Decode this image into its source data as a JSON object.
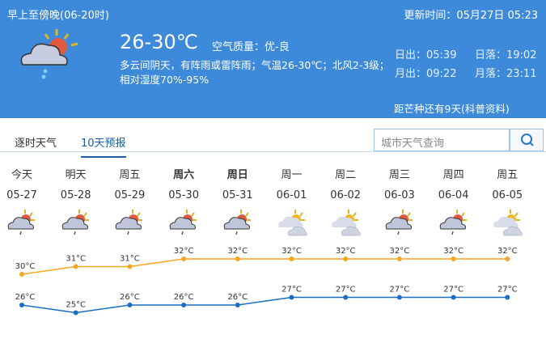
{
  "header": {
    "period": "早上至傍晚(06-20时)",
    "update_time": "更新时间：05月27日 05:23",
    "temperature": "26-30℃",
    "air_quality": "空气质量：优-良",
    "description": "多云间阴天，有阵雨或雷阵雨；气温26-30℃；北风2-3级；相对湿度70%-95%",
    "sunrise": "日出：05:39",
    "sunset": "日落：19:02",
    "moonrise": "月出：09:22",
    "moonset": "月落：23:11",
    "solar_term": "距芒种还有9天(科普资料)",
    "icon": "partly-cloudy-shower-icon"
  },
  "tabs": [
    {
      "label": "逐时天气",
      "active": false
    },
    {
      "label": "10天预报",
      "active": true
    }
  ],
  "search": {
    "placeholder": "城市天气查询",
    "icon": "search-icon"
  },
  "colors": {
    "header_bg": "#3e8ada",
    "high_line": "#f5a623",
    "low_line": "#1a6ec5"
  },
  "forecast": [
    {
      "day": "今天",
      "date": "05-27",
      "icon": "cloudy-shower",
      "bold": false
    },
    {
      "day": "明天",
      "date": "05-28",
      "icon": "cloudy-shower",
      "bold": false
    },
    {
      "day": "周五",
      "date": "05-29",
      "icon": "cloudy-shower",
      "bold": false
    },
    {
      "day": "周六",
      "date": "05-30",
      "icon": "cloudy-shower",
      "bold": true
    },
    {
      "day": "周日",
      "date": "05-31",
      "icon": "cloudy-shower",
      "bold": true
    },
    {
      "day": "周一",
      "date": "06-01",
      "icon": "partly-cloudy",
      "bold": false
    },
    {
      "day": "周二",
      "date": "06-02",
      "icon": "partly-cloudy",
      "bold": false
    },
    {
      "day": "周三",
      "date": "06-03",
      "icon": "cloudy-shower",
      "bold": false
    },
    {
      "day": "周四",
      "date": "06-04",
      "icon": "cloudy-shower",
      "bold": false
    },
    {
      "day": "周五",
      "date": "06-05",
      "icon": "partly-cloudy",
      "bold": false
    }
  ],
  "chart_data": {
    "type": "line",
    "categories": [
      "05-27",
      "05-28",
      "05-29",
      "05-30",
      "05-31",
      "06-01",
      "06-02",
      "06-03",
      "06-04",
      "06-05"
    ],
    "unit": "°C",
    "series": [
      {
        "values": [
          30,
          31,
          31,
          32,
          32,
          32,
          32,
          32,
          32,
          32
        ],
        "color": "#f5a623"
      },
      {
        "values": [
          26,
          25,
          26,
          26,
          26,
          27,
          27,
          27,
          27,
          27
        ],
        "color": "#1a6ec5"
      }
    ]
  }
}
